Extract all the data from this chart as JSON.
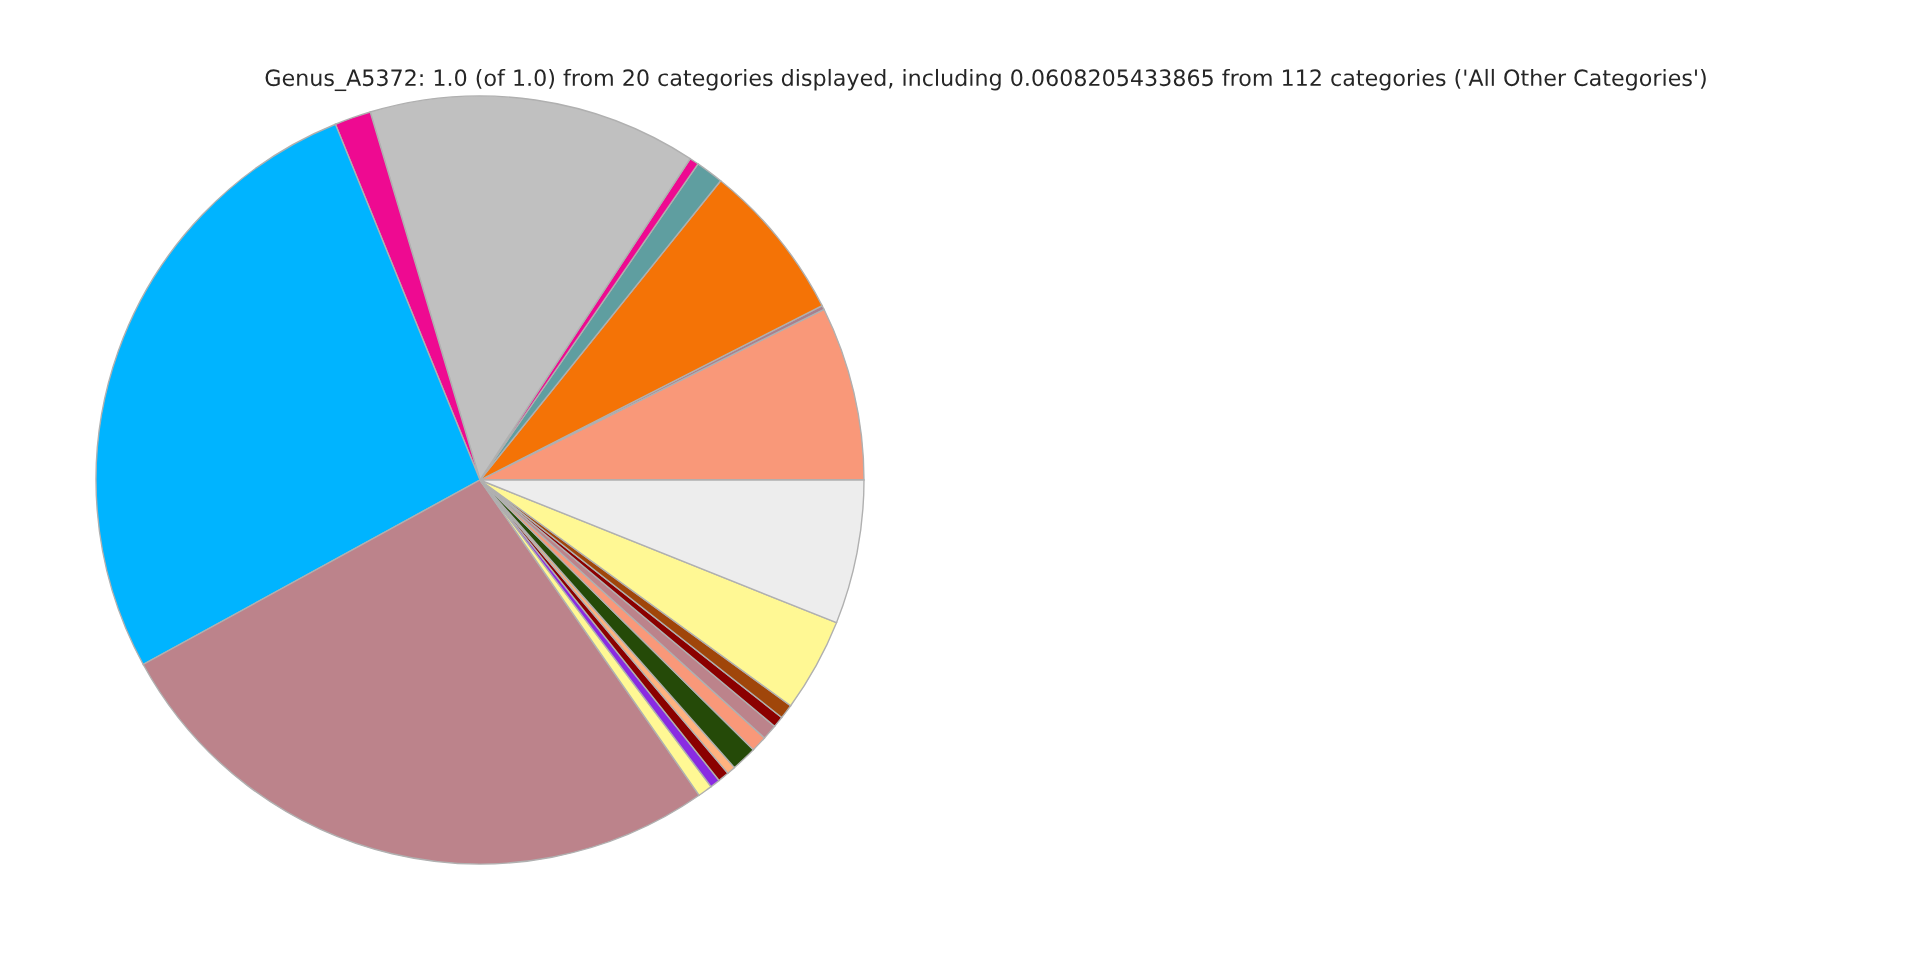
{
  "chart_data": {
    "type": "pie",
    "title": "Genus_A5372: 1.0 (of 1.0) from 20 categories displayed, including 0.0608205433865 from 112 categories ('All Other Categories')",
    "categories": [
      null,
      null,
      null,
      null,
      null,
      null,
      null,
      null,
      null,
      null,
      null,
      null,
      null,
      null,
      null,
      null,
      null,
      null,
      null,
      null
    ],
    "values": [
      7.33,
      0.17,
      6.72,
      1.17,
      0.39,
      13.83,
      1.53,
      26.83,
      26.69,
      0.61,
      0.42,
      0.47,
      0.36,
      1.08,
      0.67,
      0.64,
      0.47,
      0.61,
      3.94,
      6.06
    ],
    "colors": [
      "#f99879",
      "#a8808e",
      "#f47306",
      "#5f9ea0",
      "#ee0a91",
      "#c0c0c0",
      "#ee0a91",
      "#00b4ff",
      "#bc838b",
      "#fff894",
      "#8a2be2",
      "#8b0000",
      "#ffb27f",
      "#254a08",
      "#f99879",
      "#bc838b",
      "#8b0000",
      "#a0460a",
      "#fff894",
      "#ededed"
    ]
  }
}
